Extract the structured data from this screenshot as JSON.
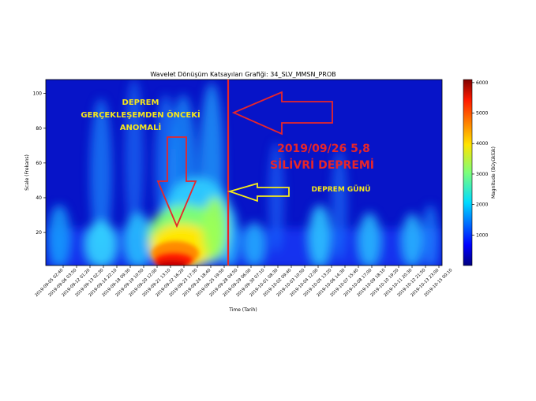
{
  "chart_data": {
    "type": "heatmap",
    "title": "Wavelet Dönüşüm Katsayıları Grafiği: 34_SLV_MMSN_PROB",
    "xlabel": "Time (Tarih)",
    "ylabel": "Scale (Frekans)",
    "y_ticks": [
      20,
      40,
      60,
      80,
      100
    ],
    "ylim": [
      1,
      108
    ],
    "x_ticks": [
      "2019-09-05 02:40",
      "2019-09-06 03:50",
      "2019-09-12 01:20",
      "2019-09-13 02:30",
      "2019-09-14 22:10",
      "2019-09-18 09:30",
      "2019-09-19 10:50",
      "2019-09-20 12:00",
      "2019-09-21 13:10",
      "2019-09-22 16:20",
      "2019-09-23 17:30",
      "2019-09-24 18:40",
      "2019-09-25 19:50",
      "2019-09-28 04:50",
      "2019-09-29 06:00",
      "2019-09-30 07:10",
      "2019-10-01 08:30",
      "2019-10-02 09:40",
      "2019-10-03 10:50",
      "2019-10-04 12:00",
      "2019-10-05 13:20",
      "2019-10-06 14:30",
      "2019-10-07 15:40",
      "2019-10-08 17:00",
      "2019-10-09 18:10",
      "2019-10-10 19:20",
      "2019-10-11 20:30",
      "2019-10-12 21:50",
      "2019-10-13 23:00",
      "2019-10-15 00:10"
    ],
    "colorbar": {
      "label": "Magnitude (Büyüklük)",
      "ticks": [
        1000,
        2000,
        3000,
        4000,
        5000,
        6000
      ],
      "range": [
        0,
        6100
      ],
      "colormap": "jet"
    },
    "event_line": {
      "x_label": "2019-09-26 05:8"
    },
    "annotations": {
      "anomaly_line1": "DEPREM",
      "anomaly_line2": "GERÇEKLEŞEMDEN ÖNCEKİ",
      "anomaly_line3": "ANOMALİ",
      "quake_line1": "2019/09/26 5,8",
      "quake_line2": "SİLİVRİ DEPREMİ",
      "quake_day": "DEPREM GÜNÜ"
    },
    "colors": {
      "event_line": "#e8262a",
      "arrow_red": "#e8262a",
      "arrow_yellow": "#f5ea1a",
      "label_yellow": "#f5e61c",
      "label_red": "#e8262a"
    }
  }
}
